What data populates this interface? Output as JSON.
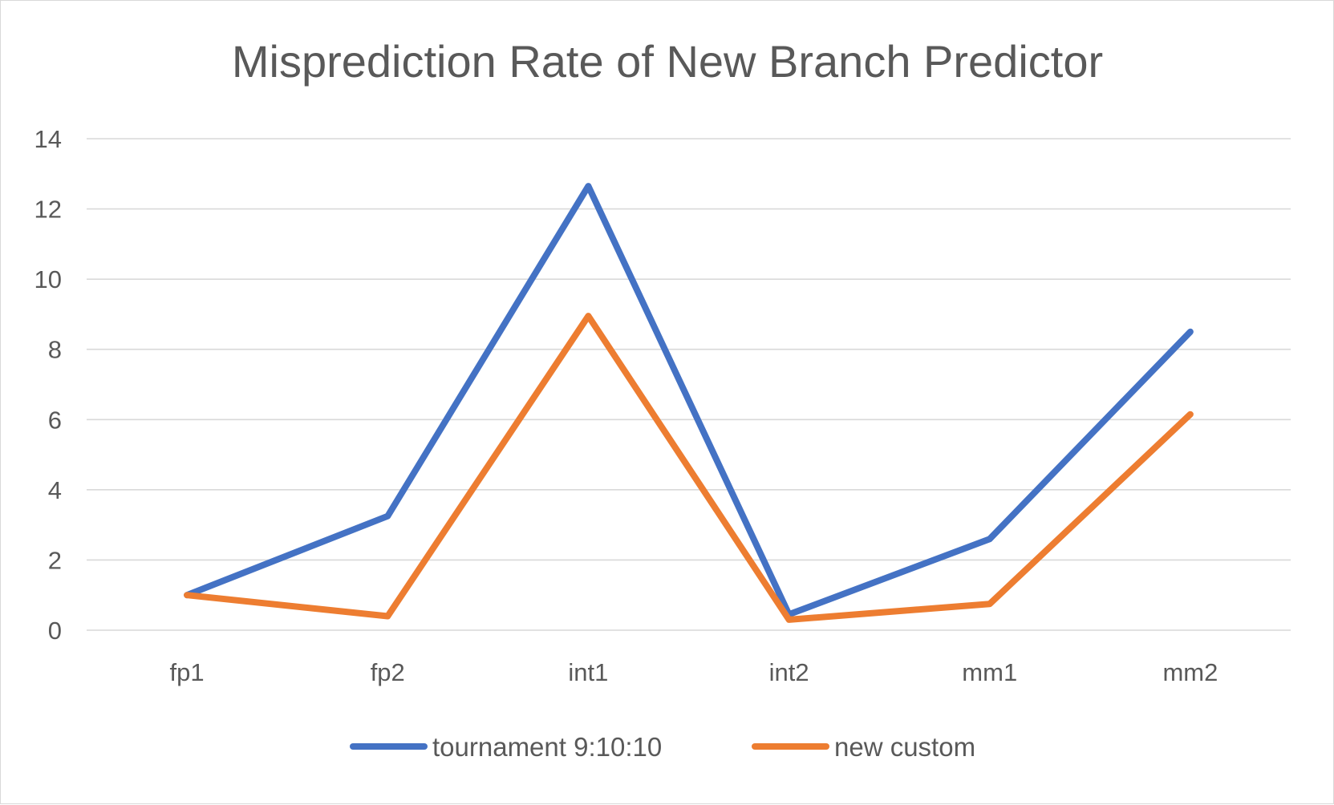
{
  "chart_data": {
    "type": "line",
    "title": "Misprediction Rate of New Branch Predictor",
    "xlabel": "",
    "ylabel": "",
    "categories": [
      "fp1",
      "fp2",
      "int1",
      "int2",
      "mm1",
      "mm2"
    ],
    "ylim": [
      0,
      14
    ],
    "yticks": [
      0,
      2,
      4,
      6,
      8,
      10,
      12,
      14
    ],
    "grid": true,
    "legend": "bottom",
    "series": [
      {
        "name": "tournament 9:10:10",
        "color": "#4472C4",
        "values": [
          1.0,
          3.25,
          12.65,
          0.45,
          2.6,
          8.5
        ]
      },
      {
        "name": "new custom",
        "color": "#ED7D31",
        "values": [
          1.0,
          0.4,
          8.95,
          0.3,
          0.75,
          6.15
        ]
      }
    ]
  }
}
